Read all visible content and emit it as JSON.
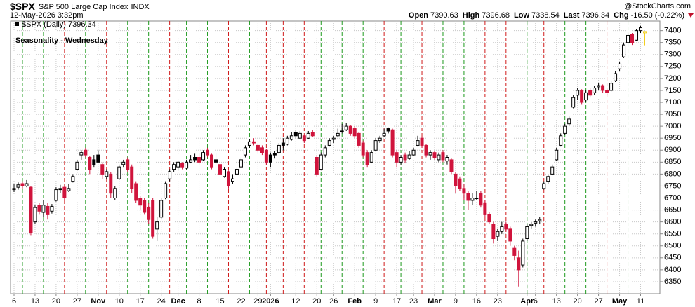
{
  "chart_data": {
    "type": "candlestick",
    "header": {
      "symbol": "$SPX",
      "name": "S&P 500 Large Cap Index",
      "exchange": "INDX",
      "date": "12-May-2026 3:32pm",
      "source": "@StockCharts.com",
      "quote": [
        {
          "label": "Open",
          "value": "7390.63"
        },
        {
          "label": "High",
          "value": "7396.68"
        },
        {
          "label": "Low",
          "value": "7338.54"
        },
        {
          "label": "Last",
          "value": "7396.34"
        },
        {
          "label": "Chg",
          "value": "-16.50 (-0.22%)"
        }
      ]
    },
    "legend": "$SPX (Daily) 7396.34",
    "title": "Seasonality - Wednesday",
    "up_color": "#000000",
    "down_color": "#d0143c",
    "last_color": "#f2cf1f",
    "ylim": [
      6300,
      7440
    ],
    "yticks": [
      6350,
      6400,
      6450,
      6500,
      6550,
      6600,
      6650,
      6700,
      6750,
      6800,
      6850,
      6900,
      6950,
      7000,
      7050,
      7100,
      7150,
      7200,
      7250,
      7300,
      7350,
      7400
    ],
    "grid": true,
    "categories": [
      "6",
      null,
      null,
      null,
      null,
      "13",
      null,
      null,
      null,
      null,
      "20",
      null,
      null,
      null,
      null,
      "27",
      null,
      null,
      null,
      null,
      "Nov",
      null,
      null,
      null,
      null,
      "10",
      null,
      null,
      null,
      null,
      "17",
      null,
      null,
      null,
      null,
      "24",
      null,
      null,
      null,
      "Dec",
      null,
      null,
      null,
      null,
      "8",
      null,
      null,
      null,
      null,
      "15",
      null,
      null,
      null,
      null,
      "22",
      null,
      null,
      null,
      "29",
      null,
      null,
      "2026",
      null,
      null,
      null,
      null,
      null,
      "12",
      null,
      null,
      null,
      null,
      "20",
      null,
      null,
      null,
      "26",
      null,
      null,
      null,
      null,
      "Feb",
      null,
      null,
      null,
      null,
      "9",
      null,
      null,
      null,
      null,
      "17",
      null,
      null,
      null,
      "23",
      null,
      null,
      null,
      null,
      "Mar",
      null,
      null,
      null,
      null,
      "9",
      null,
      null,
      null,
      null,
      "16",
      null,
      null,
      null,
      null,
      "23",
      null,
      null,
      null,
      null,
      null,
      null,
      "Apr",
      null,
      "6",
      null,
      null,
      null,
      null,
      "13",
      null,
      null,
      null,
      null,
      "20",
      null,
      null,
      null,
      null,
      "27",
      null,
      null,
      null,
      null,
      "May",
      null,
      null,
      null,
      null,
      "11",
      null
    ],
    "wednesday_lines": [
      {
        "index": 2,
        "color": "#1f9a1f"
      },
      {
        "index": 7,
        "color": "#1f9a1f"
      },
      {
        "index": 12,
        "color": "#d01c1c"
      },
      {
        "index": 17,
        "color": "#1f9a1f"
      },
      {
        "index": 22,
        "color": "#d01c1c"
      },
      {
        "index": 27,
        "color": "#1f9a1f"
      },
      {
        "index": 32,
        "color": "#1f9a1f"
      },
      {
        "index": 37,
        "color": "#d01c1c"
      },
      {
        "index": 41,
        "color": "#1f9a1f"
      },
      {
        "index": 46,
        "color": "#1f9a1f"
      },
      {
        "index": 51,
        "color": "#d01c1c"
      },
      {
        "index": 56,
        "color": "#1f9a1f"
      },
      {
        "index": 60,
        "color": "#d01c1c"
      },
      {
        "index": 64,
        "color": "#d01c1c"
      },
      {
        "index": 69,
        "color": "#d01c1c"
      },
      {
        "index": 73,
        "color": "#1f9a1f"
      },
      {
        "index": 78,
        "color": "#1f9a1f"
      },
      {
        "index": 83,
        "color": "#1f9a1f"
      },
      {
        "index": 88,
        "color": "#d01c1c"
      },
      {
        "index": 92,
        "color": "#1f9a1f"
      },
      {
        "index": 97,
        "color": "#d01c1c"
      },
      {
        "index": 102,
        "color": "#1f9a1f"
      },
      {
        "index": 107,
        "color": "#1f9a1f"
      },
      {
        "index": 112,
        "color": "#d01c1c"
      },
      {
        "index": 117,
        "color": "#d01c1c"
      },
      {
        "index": 122,
        "color": "#1f9a1f"
      },
      {
        "index": 126,
        "color": "#d01c1c"
      },
      {
        "index": 131,
        "color": "#1f9a1f"
      },
      {
        "index": 136,
        "color": "#1f9a1f"
      },
      {
        "index": 141,
        "color": "#d01c1c"
      },
      {
        "index": 146,
        "color": "#1f9a1f"
      }
    ],
    "candles": [
      [
        6735,
        6760,
        6725,
        6740
      ],
      [
        6745,
        6765,
        6735,
        6755
      ],
      [
        6760,
        6770,
        6740,
        6750
      ],
      [
        6750,
        6775,
        6745,
        6760
      ],
      [
        6745,
        6750,
        6545,
        6555
      ],
      [
        6600,
        6670,
        6590,
        6660
      ],
      [
        6670,
        6680,
        6630,
        6645
      ],
      [
        6640,
        6690,
        6620,
        6670
      ],
      [
        6665,
        6680,
        6610,
        6630
      ],
      [
        6645,
        6675,
        6635,
        6665
      ],
      [
        6690,
        6745,
        6685,
        6735
      ],
      [
        6740,
        6755,
        6720,
        6735
      ],
      [
        6745,
        6750,
        6690,
        6700
      ],
      [
        6730,
        6760,
        6725,
        6740
      ],
      [
        6770,
        6800,
        6765,
        6790
      ],
      [
        6820,
        6860,
        6815,
        6850
      ],
      [
        6880,
        6900,
        6860,
        6890
      ],
      [
        6900,
        6910,
        6870,
        6880
      ],
      [
        6870,
        6875,
        6800,
        6820
      ],
      [
        6860,
        6880,
        6830,
        6840
      ],
      [
        6880,
        6900,
        6845,
        6850
      ],
      [
        6840,
        6850,
        6780,
        6800
      ],
      [
        6790,
        6820,
        6780,
        6810
      ],
      [
        6800,
        6810,
        6700,
        6720
      ],
      [
        6700,
        6750,
        6690,
        6740
      ],
      [
        6780,
        6835,
        6775,
        6830
      ],
      [
        6840,
        6860,
        6830,
        6850
      ],
      [
        6860,
        6870,
        6810,
        6820
      ],
      [
        6830,
        6840,
        6720,
        6740
      ],
      [
        6760,
        6770,
        6680,
        6690
      ],
      [
        6700,
        6710,
        6650,
        6670
      ],
      [
        6690,
        6700,
        6630,
        6640
      ],
      [
        6660,
        6680,
        6590,
        6610
      ],
      [
        6690,
        6700,
        6530,
        6540
      ],
      [
        6570,
        6620,
        6520,
        6600
      ],
      [
        6620,
        6700,
        6610,
        6690
      ],
      [
        6700,
        6770,
        6695,
        6760
      ],
      [
        6780,
        6820,
        6770,
        6810
      ],
      [
        6820,
        6850,
        6810,
        6840
      ],
      [
        6830,
        6855,
        6815,
        6850
      ],
      [
        6845,
        6850,
        6820,
        6830
      ],
      [
        6825,
        6860,
        6820,
        6850
      ],
      [
        6850,
        6880,
        6845,
        6860
      ],
      [
        6870,
        6885,
        6850,
        6860
      ],
      [
        6870,
        6885,
        6840,
        6850
      ],
      [
        6860,
        6900,
        6855,
        6890
      ],
      [
        6900,
        6910,
        6870,
        6880
      ],
      [
        6880,
        6885,
        6820,
        6830
      ],
      [
        6860,
        6890,
        6840,
        6850
      ],
      [
        6840,
        6845,
        6790,
        6800
      ],
      [
        6790,
        6830,
        6785,
        6820
      ],
      [
        6810,
        6815,
        6740,
        6750
      ],
      [
        6770,
        6800,
        6760,
        6780
      ],
      [
        6800,
        6830,
        6795,
        6820
      ],
      [
        6830,
        6870,
        6825,
        6860
      ],
      [
        6880,
        6920,
        6870,
        6910
      ],
      [
        6920,
        6945,
        6910,
        6935
      ],
      [
        6935,
        6950,
        6920,
        6930
      ],
      [
        6920,
        6925,
        6890,
        6900
      ],
      [
        6910,
        6920,
        6880,
        6890
      ],
      [
        6900,
        6905,
        6840,
        6850
      ],
      [
        6880,
        6890,
        6830,
        6850
      ],
      [
        6885,
        6895,
        6865,
        6880
      ],
      [
        6890,
        6930,
        6885,
        6920
      ],
      [
        6930,
        6950,
        6900,
        6920
      ],
      [
        6925,
        6960,
        6920,
        6950
      ],
      [
        6945,
        6975,
        6940,
        6960
      ],
      [
        6975,
        6985,
        6950,
        6960
      ],
      [
        6950,
        6980,
        6945,
        6970
      ],
      [
        6960,
        6965,
        6930,
        6940
      ],
      [
        6950,
        6980,
        6945,
        6970
      ],
      [
        6975,
        6985,
        6955,
        6960
      ],
      [
        6870,
        6880,
        6790,
        6800
      ],
      [
        6820,
        6890,
        6815,
        6880
      ],
      [
        6880,
        6920,
        6870,
        6910
      ],
      [
        6920,
        6950,
        6915,
        6940
      ],
      [
        6945,
        6960,
        6930,
        6950
      ],
      [
        6960,
        6990,
        6955,
        6970
      ],
      [
        6980,
        7010,
        6970,
        6980
      ],
      [
        6985,
        7015,
        6980,
        7000
      ],
      [
        7000,
        7005,
        6960,
        6970
      ],
      [
        6990,
        7000,
        6950,
        6960
      ],
      [
        6970,
        6975,
        6910,
        6920
      ],
      [
        6930,
        6940,
        6870,
        6880
      ],
      [
        6890,
        6900,
        6830,
        6840
      ],
      [
        6850,
        6900,
        6845,
        6890
      ],
      [
        6900,
        6950,
        6895,
        6940
      ],
      [
        6940,
        6960,
        6930,
        6950
      ],
      [
        6960,
        6990,
        6955,
        6970
      ],
      [
        6990,
        6995,
        6970,
        6980
      ],
      [
        6985,
        6990,
        6870,
        6880
      ],
      [
        6890,
        6900,
        6830,
        6850
      ],
      [
        6850,
        6880,
        6840,
        6870
      ],
      [
        6880,
        6890,
        6845,
        6860
      ],
      [
        6865,
        6895,
        6860,
        6880
      ],
      [
        6880,
        6910,
        6875,
        6900
      ],
      [
        6920,
        6960,
        6915,
        6940
      ],
      [
        6950,
        6955,
        6910,
        6920
      ],
      [
        6920,
        6925,
        6870,
        6880
      ],
      [
        6880,
        6900,
        6860,
        6890
      ],
      [
        6890,
        6895,
        6860,
        6870
      ],
      [
        6860,
        6890,
        6850,
        6880
      ],
      [
        6890,
        6900,
        6850,
        6860
      ],
      [
        6855,
        6880,
        6840,
        6870
      ],
      [
        6860,
        6865,
        6800,
        6810
      ],
      [
        6800,
        6810,
        6720,
        6750
      ],
      [
        6780,
        6790,
        6730,
        6740
      ],
      [
        6740,
        6760,
        6690,
        6720
      ],
      [
        6720,
        6730,
        6650,
        6690
      ],
      [
        6690,
        6720,
        6670,
        6700
      ],
      [
        6700,
        6730,
        6690,
        6700
      ],
      [
        6720,
        6730,
        6660,
        6670
      ],
      [
        6680,
        6690,
        6620,
        6630
      ],
      [
        6630,
        6640,
        6590,
        6600
      ],
      [
        6590,
        6600,
        6510,
        6530
      ],
      [
        6540,
        6570,
        6520,
        6560
      ],
      [
        6560,
        6600,
        6550,
        6580
      ],
      [
        6590,
        6600,
        6560,
        6570
      ],
      [
        6570,
        6580,
        6500,
        6520
      ],
      [
        6490,
        6500,
        6440,
        6460
      ],
      [
        6450,
        6480,
        6330,
        6400
      ],
      [
        6420,
        6530,
        6410,
        6520
      ],
      [
        6530,
        6590,
        6520,
        6580
      ],
      [
        6585,
        6600,
        6570,
        6590
      ],
      [
        6595,
        6610,
        6580,
        6600
      ],
      [
        6605,
        6620,
        6590,
        6610
      ],
      [
        6740,
        6770,
        6735,
        6760
      ],
      [
        6770,
        6800,
        6760,
        6790
      ],
      [
        6800,
        6840,
        6795,
        6830
      ],
      [
        6860,
        6910,
        6855,
        6900
      ],
      [
        6920,
        6970,
        6915,
        6960
      ],
      [
        6970,
        7010,
        6965,
        7000
      ],
      [
        7010,
        7040,
        7000,
        7030
      ],
      [
        7080,
        7130,
        7075,
        7120
      ],
      [
        7130,
        7160,
        7110,
        7150
      ],
      [
        7150,
        7155,
        7090,
        7100
      ],
      [
        7110,
        7150,
        7100,
        7140
      ],
      [
        7150,
        7160,
        7120,
        7130
      ],
      [
        7140,
        7170,
        7130,
        7160
      ],
      [
        7165,
        7180,
        7150,
        7170
      ],
      [
        7170,
        7175,
        7140,
        7150
      ],
      [
        7150,
        7155,
        7130,
        7140
      ],
      [
        7150,
        7190,
        7145,
        7180
      ],
      [
        7190,
        7230,
        7185,
        7220
      ],
      [
        7240,
        7270,
        7230,
        7260
      ],
      [
        7290,
        7350,
        7285,
        7340
      ],
      [
        7350,
        7390,
        7345,
        7380
      ],
      [
        7385,
        7390,
        7340,
        7350
      ],
      [
        7360,
        7405,
        7355,
        7400
      ],
      [
        7400,
        7420,
        7390,
        7412
      ],
      [
        7390.63,
        7396.68,
        7338.54,
        7396.34
      ]
    ]
  }
}
